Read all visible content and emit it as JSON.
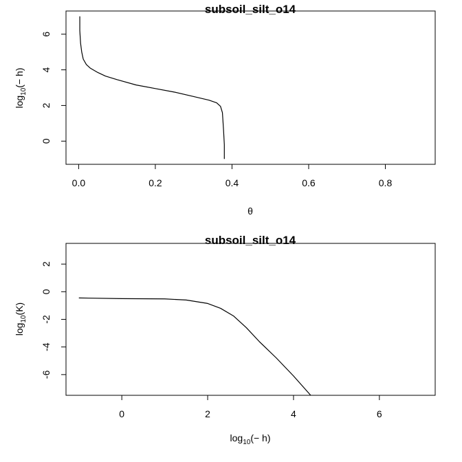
{
  "chart_data": [
    {
      "type": "line",
      "title": "subsoil_silt_o14",
      "xlabel": "θ",
      "ylabel": {
        "pre": "log",
        "sub": "10",
        "post": "(− h)"
      },
      "xlim": [
        -0.033,
        0.93
      ],
      "ylim": [
        -1.3,
        7.3
      ],
      "xticks": [
        0.0,
        0.2,
        0.4,
        0.6,
        0.8
      ],
      "xtick_labels": [
        "0.0",
        "0.2",
        "0.4",
        "0.6",
        "0.8"
      ],
      "yticks": [
        0,
        2,
        4,
        6
      ],
      "ytick_labels": [
        "0",
        "2",
        "4",
        "6"
      ],
      "grid": false,
      "series": [
        {
          "x": [
            0.003,
            0.003,
            0.005,
            0.008,
            0.012,
            0.02,
            0.03,
            0.05,
            0.07,
            0.1,
            0.15,
            0.2,
            0.25,
            0.3,
            0.34,
            0.36,
            0.37,
            0.375,
            0.378,
            0.38,
            0.38
          ],
          "y": [
            7.0,
            6.2,
            5.5,
            5.0,
            4.6,
            4.3,
            4.1,
            3.85,
            3.65,
            3.45,
            3.15,
            2.95,
            2.75,
            2.5,
            2.3,
            2.15,
            1.95,
            1.6,
            0.6,
            -0.2,
            -1.0
          ]
        }
      ]
    },
    {
      "type": "line",
      "title": "subsoil_silt_o14",
      "xlabel": {
        "pre": "log",
        "sub": "10",
        "post": "(− h)"
      },
      "ylabel": {
        "pre": "log",
        "sub": "10",
        "post": "(K)"
      },
      "xlim": [
        -1.3,
        7.3
      ],
      "ylim": [
        -7.5,
        3.5
      ],
      "xticks": [
        0,
        2,
        4,
        6
      ],
      "xtick_labels": [
        "0",
        "2",
        "4",
        "6"
      ],
      "yticks": [
        2,
        0,
        -2,
        -4,
        -6
      ],
      "ytick_labels": [
        "2",
        "0",
        "-2",
        "-4",
        "-6"
      ],
      "grid": false,
      "series": [
        {
          "x": [
            -1.0,
            0.0,
            1.0,
            1.5,
            2.0,
            2.3,
            2.6,
            2.9,
            3.2,
            3.6,
            4.0,
            4.4
          ],
          "y": [
            -0.45,
            -0.5,
            -0.52,
            -0.6,
            -0.85,
            -1.2,
            -1.75,
            -2.6,
            -3.6,
            -4.8,
            -6.1,
            -7.5
          ]
        }
      ]
    }
  ]
}
